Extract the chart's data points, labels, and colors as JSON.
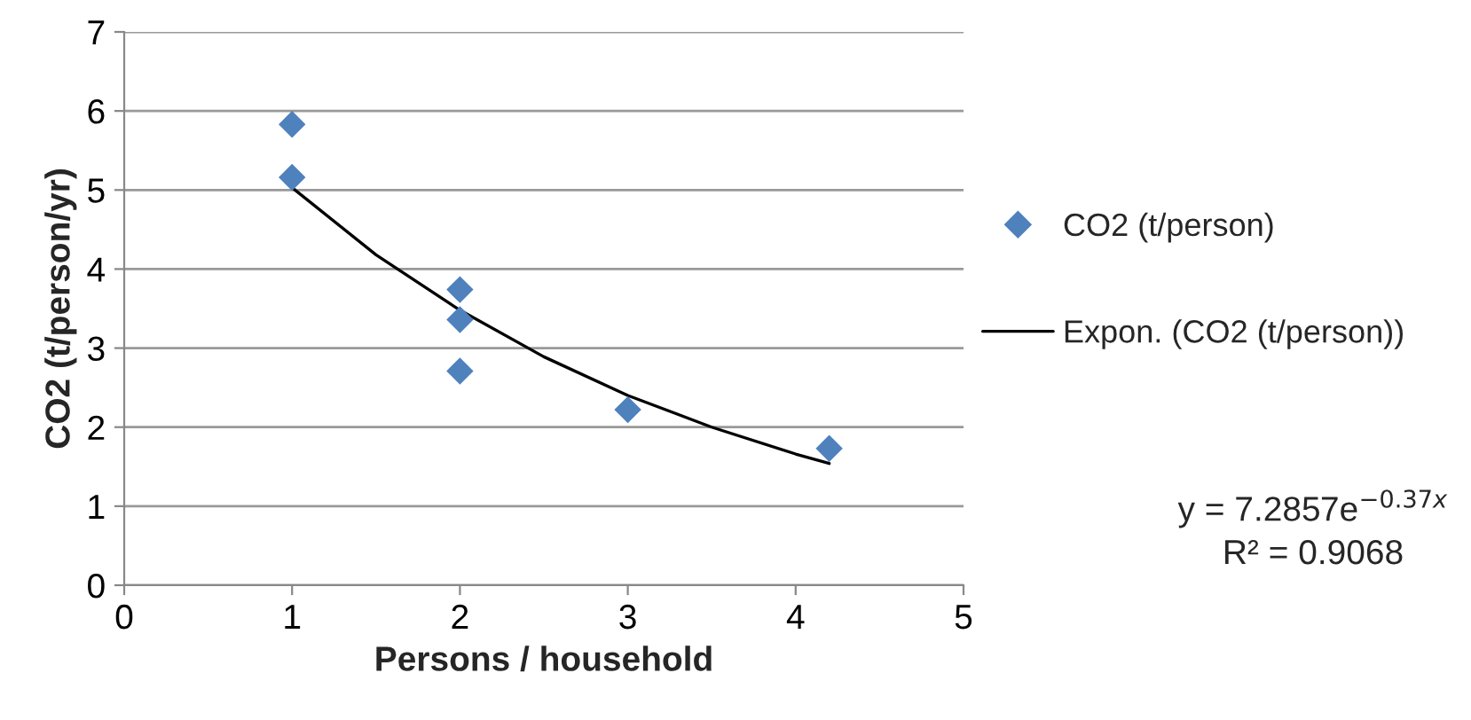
{
  "chart_data": {
    "type": "scatter",
    "xlabel": "Persons / household",
    "ylabel": "CO2 (t/person/yr)",
    "series": [
      {
        "name": "CO2 (t/person)",
        "color": "#4f81bd",
        "marker": "diamond",
        "x": [
          1,
          1,
          2,
          2,
          2,
          3,
          4.2
        ],
        "values": [
          5.83,
          5.16,
          3.74,
          3.36,
          2.71,
          2.22,
          1.73
        ]
      },
      {
        "name": "Expon. (CO2 (t/person))",
        "type": "line",
        "color": "#000000",
        "marker": "none",
        "line_style": "solid",
        "x": [
          1,
          1.5,
          2,
          2.5,
          3,
          3.5,
          4,
          4.2
        ],
        "values": [
          5.03,
          4.18,
          3.48,
          2.89,
          2.4,
          2.0,
          1.66,
          1.54
        ]
      }
    ],
    "annotations": [
      "y = 7.2857e$^{−0.37x}$",
      "R² = 0.9068"
    ],
    "xlim": [
      0,
      5
    ],
    "xticks": [
      0,
      1,
      2,
      3,
      4,
      5
    ],
    "ylim": [
      0,
      7
    ],
    "yticks": [
      0,
      1,
      2,
      3,
      4,
      5,
      6,
      7
    ],
    "grid": "y",
    "legend": "right"
  }
}
